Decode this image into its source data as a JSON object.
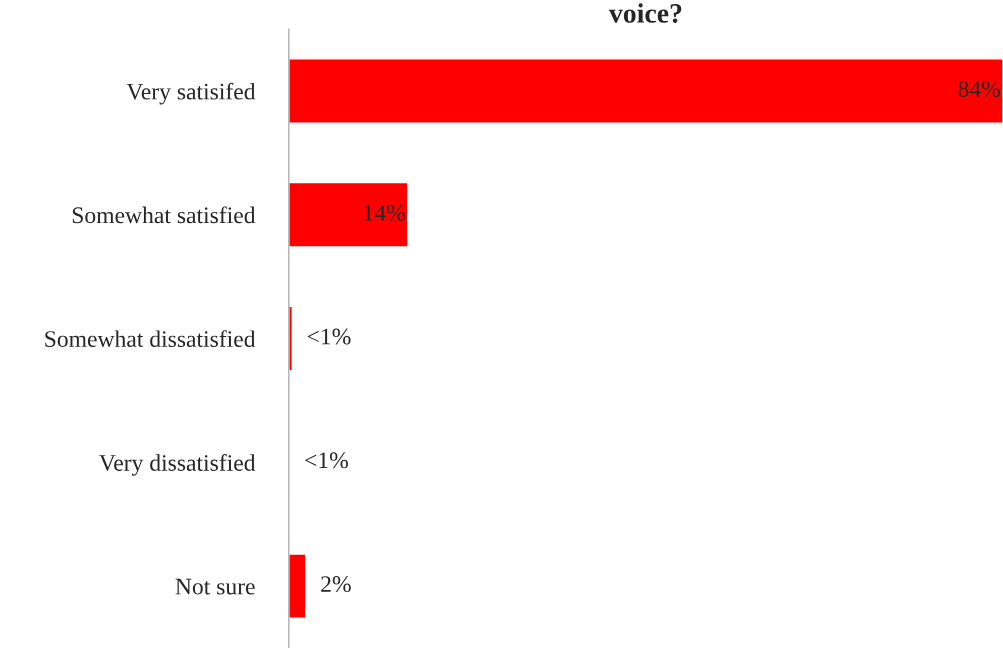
{
  "chart_data": {
    "type": "bar",
    "orientation": "horizontal",
    "title": "voice?",
    "categories": [
      "Very satisifed",
      "Somewhat satisfied",
      "Somewhat dissatisfied",
      "Very dissatisfied",
      "Not sure"
    ],
    "values": [
      84,
      14,
      0.4,
      0.1,
      2
    ],
    "colors": [
      "#ff0000",
      "#ff0000",
      "#ff0000",
      "#7f1010",
      "#ff0000"
    ],
    "value_labels": [
      "84%",
      "14%",
      "<1%",
      "<1%",
      "2%"
    ],
    "grid": false,
    "legend": false
  }
}
